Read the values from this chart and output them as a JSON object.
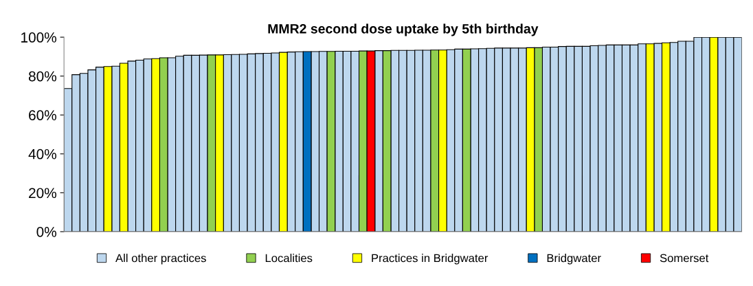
{
  "chart_data": {
    "type": "bar",
    "title": "MMR2 second dose uptake by 5th birthday",
    "categories": [
      null,
      null,
      null,
      null,
      null,
      null,
      null,
      null,
      null,
      null,
      null,
      null,
      null,
      null,
      null,
      null,
      null,
      null,
      null,
      null,
      null,
      null,
      null,
      null,
      null,
      null,
      null,
      null,
      null,
      null,
      null,
      null,
      null,
      null,
      null,
      null,
      null,
      null,
      null,
      null,
      null,
      null,
      null,
      null,
      null,
      null,
      null,
      null,
      null,
      null,
      null,
      null,
      null,
      null,
      null,
      null,
      null,
      null,
      null,
      null,
      null,
      null,
      null,
      null,
      null,
      null,
      null,
      null,
      null,
      null,
      null,
      null,
      null,
      null,
      null,
      null,
      null,
      null,
      null,
      null,
      null,
      null,
      null,
      null,
      null
    ],
    "series": [
      {
        "name": "All other practices",
        "color": "#bdd7ee",
        "values": [
          73.6,
          80.7,
          81.4,
          83.2,
          84.6,
          null,
          85.1,
          null,
          87.7,
          88.2,
          88.8,
          null,
          null,
          89.4,
          90.2,
          90.7,
          90.7,
          90.8,
          null,
          null,
          91.0,
          91.1,
          91.2,
          91.4,
          91.6,
          91.7,
          91.9,
          null,
          92.4,
          92.5,
          null,
          92.6,
          92.7,
          null,
          92.8,
          92.8,
          92.8,
          null,
          null,
          93.1,
          null,
          93.2,
          93.2,
          93.2,
          93.3,
          93.3,
          null,
          null,
          93.6,
          93.9,
          null,
          94.0,
          94.1,
          94.3,
          94.4,
          94.4,
          94.4,
          94.4,
          null,
          null,
          94.9,
          94.9,
          95.2,
          95.3,
          95.3,
          95.3,
          95.6,
          95.8,
          96.0,
          96.0,
          96.0,
          96.0,
          96.6,
          null,
          96.8,
          null,
          97.3,
          97.9,
          97.9,
          100,
          100,
          null,
          100,
          100,
          100
        ]
      },
      {
        "name": "Localities",
        "color": "#92d050",
        "values": [
          null,
          null,
          null,
          null,
          null,
          null,
          null,
          null,
          null,
          null,
          null,
          null,
          89.4,
          null,
          null,
          null,
          null,
          null,
          90.9,
          null,
          null,
          null,
          null,
          null,
          null,
          null,
          null,
          null,
          null,
          null,
          null,
          null,
          null,
          92.7,
          null,
          null,
          null,
          92.9,
          null,
          null,
          93.1,
          null,
          null,
          null,
          null,
          null,
          93.4,
          null,
          null,
          null,
          93.9,
          null,
          null,
          null,
          null,
          null,
          null,
          null,
          null,
          94.6,
          null,
          null,
          null,
          null,
          null,
          null,
          null,
          null,
          null,
          null,
          null,
          null,
          null,
          null,
          null,
          null,
          null,
          null,
          null,
          null,
          null,
          null,
          null,
          null,
          null
        ]
      },
      {
        "name": "Practices in Bridgwater",
        "color": "#ffff00",
        "values": [
          null,
          null,
          null,
          null,
          null,
          84.9,
          null,
          86.6,
          null,
          null,
          null,
          89.0,
          null,
          null,
          null,
          null,
          null,
          null,
          null,
          90.9,
          null,
          null,
          null,
          null,
          null,
          null,
          null,
          92.2,
          null,
          null,
          null,
          null,
          null,
          null,
          null,
          null,
          null,
          null,
          null,
          null,
          null,
          null,
          null,
          null,
          null,
          null,
          null,
          93.4,
          null,
          null,
          null,
          null,
          null,
          null,
          null,
          null,
          null,
          null,
          94.6,
          null,
          null,
          null,
          null,
          null,
          null,
          null,
          null,
          null,
          null,
          null,
          null,
          null,
          null,
          96.6,
          null,
          97.1,
          null,
          null,
          null,
          null,
          null,
          100,
          null,
          null,
          null
        ]
      },
      {
        "name": "Bridgwater",
        "color": "#0070c0",
        "values": [
          null,
          null,
          null,
          null,
          null,
          null,
          null,
          null,
          null,
          null,
          null,
          null,
          null,
          null,
          null,
          null,
          null,
          null,
          null,
          null,
          null,
          null,
          null,
          null,
          null,
          null,
          null,
          null,
          null,
          null,
          92.6,
          null,
          null,
          null,
          null,
          null,
          null,
          null,
          null,
          null,
          null,
          null,
          null,
          null,
          null,
          null,
          null,
          null,
          null,
          null,
          null,
          null,
          null,
          null,
          null,
          null,
          null,
          null,
          null,
          null,
          null,
          null,
          null,
          null,
          null,
          null,
          null,
          null,
          null,
          null,
          null,
          null,
          null,
          null,
          null,
          null,
          null,
          null,
          null,
          null,
          null,
          null,
          null,
          null,
          null
        ]
      },
      {
        "name": "Somerset",
        "color": "#ff0000",
        "values": [
          null,
          null,
          null,
          null,
          null,
          null,
          null,
          null,
          null,
          null,
          null,
          null,
          null,
          null,
          null,
          null,
          null,
          null,
          null,
          null,
          null,
          null,
          null,
          null,
          null,
          null,
          null,
          null,
          null,
          null,
          null,
          null,
          null,
          null,
          null,
          null,
          null,
          null,
          92.9,
          null,
          null,
          null,
          null,
          null,
          null,
          null,
          null,
          null,
          null,
          null,
          null,
          null,
          null,
          null,
          null,
          null,
          null,
          null,
          null,
          null,
          null,
          null,
          null,
          null,
          null,
          null,
          null,
          null,
          null,
          null,
          null,
          null,
          null,
          null,
          null,
          null,
          null,
          null,
          null,
          null,
          null,
          null,
          null,
          null,
          null
        ]
      }
    ],
    "ylim": [
      0,
      100
    ],
    "yticks": [
      {
        "value": 0,
        "label": "0%"
      },
      {
        "value": 20,
        "label": "20%"
      },
      {
        "value": 40,
        "label": "40%"
      },
      {
        "value": 60,
        "label": "60%"
      },
      {
        "value": 80,
        "label": "80%"
      },
      {
        "value": 100,
        "label": "100%"
      }
    ],
    "tick_labels": "y",
    "legend": "bottom"
  }
}
